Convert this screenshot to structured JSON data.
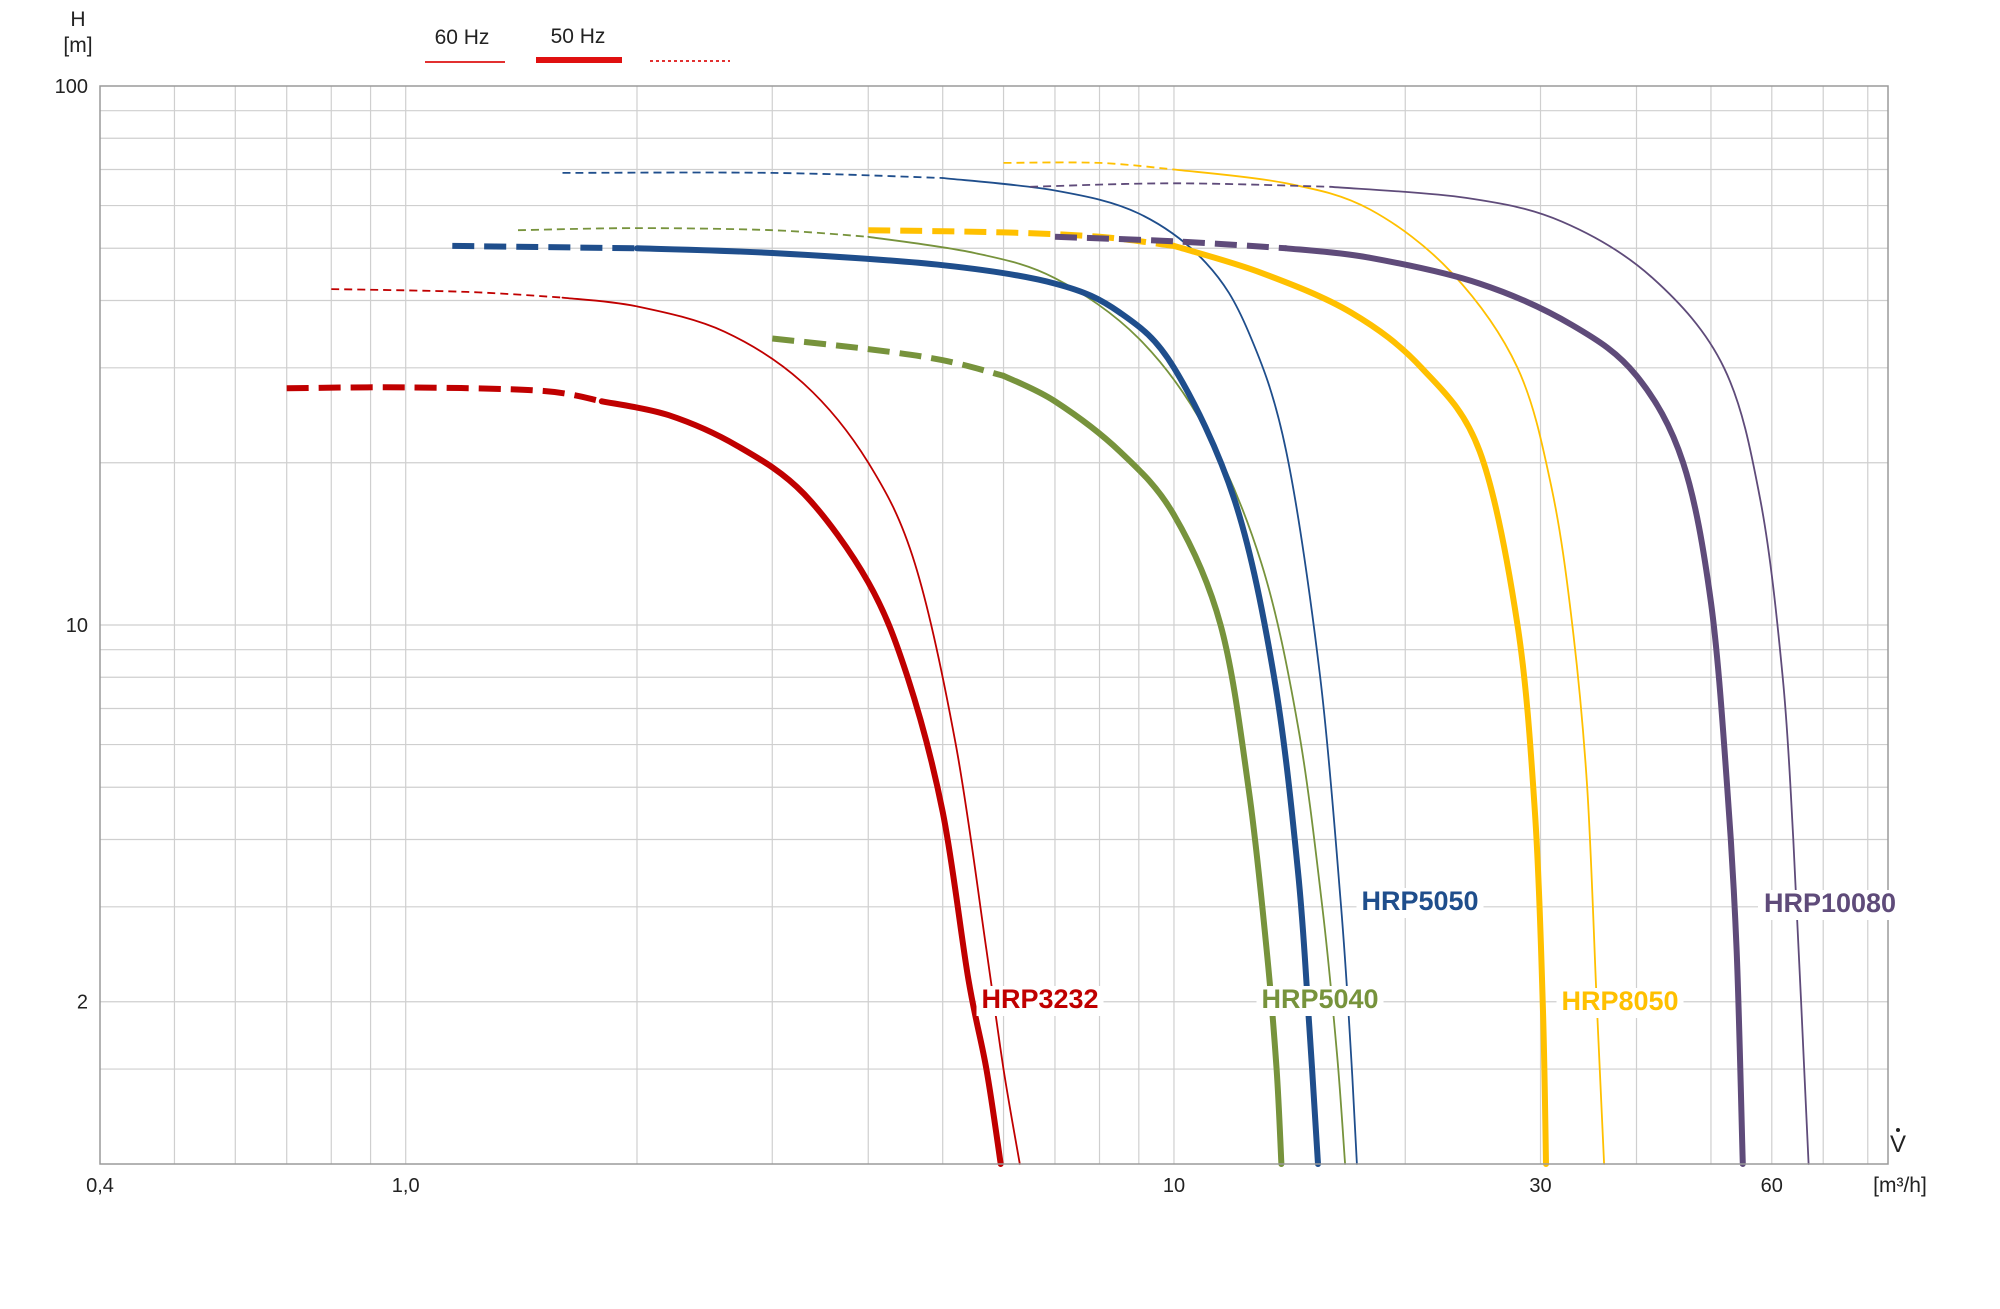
{
  "chart_data": {
    "type": "line",
    "xlabel": "V",
    "xunit": "[m³/h]",
    "ylabel": "H",
    "yunit": "[m]",
    "xscale": "log",
    "yscale": "log",
    "xlim": [
      0.4,
      85
    ],
    "ylim": [
      1,
      100
    ],
    "grid": true,
    "legend_position": "top-left",
    "x_ticks": [
      {
        "value": 0.4,
        "label": "0,4"
      },
      {
        "value": 1.0,
        "label": "1,0"
      },
      {
        "value": 10,
        "label": "10"
      },
      {
        "value": 30,
        "label": "30"
      },
      {
        "value": 60,
        "label": "60"
      }
    ],
    "y_ticks": [
      {
        "value": 100,
        "label": "100"
      },
      {
        "value": 10,
        "label": "10"
      },
      {
        "value": 2,
        "label": "2"
      }
    ],
    "legend": [
      {
        "label": "60 Hz",
        "style": "thin"
      },
      {
        "label": "50 Hz",
        "style": "thick"
      },
      {
        "label": "",
        "style": "dotted"
      }
    ],
    "series": [
      {
        "label": "HRP3232",
        "freq": "50 Hz",
        "color": "#c00000",
        "dash_until_x": 1.8,
        "points": [
          [
            0.7,
            27.5
          ],
          [
            1.0,
            27.6
          ],
          [
            1.5,
            27.2
          ],
          [
            1.8,
            26
          ],
          [
            2.2,
            24.5
          ],
          [
            2.7,
            21.5
          ],
          [
            3.3,
            17.5
          ],
          [
            4.0,
            12
          ],
          [
            4.5,
            8
          ],
          [
            5.0,
            4.5
          ],
          [
            5.4,
            2.2
          ],
          [
            5.7,
            1.5
          ],
          [
            5.95,
            1.0
          ]
        ]
      },
      {
        "label": "HRP3232",
        "freq": "60 Hz",
        "color": "#c00000",
        "dash_until_x": 1.5,
        "points": [
          [
            0.8,
            42
          ],
          [
            1.2,
            41.5
          ],
          [
            1.6,
            40.5
          ],
          [
            2.0,
            39
          ],
          [
            2.6,
            35
          ],
          [
            3.3,
            28
          ],
          [
            4.0,
            20
          ],
          [
            4.6,
            13
          ],
          [
            5.2,
            6
          ],
          [
            5.7,
            2.5
          ],
          [
            6.0,
            1.5
          ],
          [
            6.3,
            1.0
          ]
        ]
      },
      {
        "label": "HRP5040",
        "freq": "50 Hz",
        "color": "#77933c",
        "dash_until_x": 5.5,
        "points": [
          [
            3.0,
            34
          ],
          [
            4.0,
            32.5
          ],
          [
            5.0,
            31
          ],
          [
            6.0,
            29
          ],
          [
            7.0,
            26
          ],
          [
            8.5,
            21
          ],
          [
            10,
            16
          ],
          [
            11.5,
            10
          ],
          [
            12.5,
            5
          ],
          [
            13.2,
            2.5
          ],
          [
            13.6,
            1.5
          ],
          [
            13.8,
            1.0
          ]
        ]
      },
      {
        "label": "HRP5040",
        "freq": "60 Hz",
        "color": "#77933c",
        "dash_until_x": 3.5,
        "points": [
          [
            1.4,
            54
          ],
          [
            2.0,
            54.5
          ],
          [
            3.0,
            54
          ],
          [
            4.0,
            52.5
          ],
          [
            5.5,
            49
          ],
          [
            7.0,
            44
          ],
          [
            9.0,
            34
          ],
          [
            11,
            23
          ],
          [
            13,
            13
          ],
          [
            14.5,
            6.5
          ],
          [
            15.6,
            3.0
          ],
          [
            16.3,
            1.6
          ],
          [
            16.7,
            1.0
          ]
        ]
      },
      {
        "label": "HRP5050",
        "freq": "50 Hz",
        "color": "#1f4e8c",
        "dash_until_x": 2.0,
        "points": [
          [
            1.15,
            50.5
          ],
          [
            2.0,
            50
          ],
          [
            3.0,
            49
          ],
          [
            5.0,
            46.5
          ],
          [
            7.0,
            43
          ],
          [
            8.5,
            38
          ],
          [
            10,
            30
          ],
          [
            12,
            17
          ],
          [
            13.5,
            8
          ],
          [
            14.5,
            3.5
          ],
          [
            15.0,
            1.8
          ],
          [
            15.4,
            1.0
          ]
        ]
      },
      {
        "label": "HRP5050",
        "freq": "60 Hz",
        "color": "#1f4e8c",
        "dash_until_x": 4.5,
        "points": [
          [
            1.6,
            69
          ],
          [
            3.0,
            69
          ],
          [
            5.0,
            67.5
          ],
          [
            7.0,
            64
          ],
          [
            9.0,
            58
          ],
          [
            11,
            47
          ],
          [
            12.5,
            35
          ],
          [
            14,
            21
          ],
          [
            15.5,
            8
          ],
          [
            16.5,
            3.0
          ],
          [
            17.0,
            1.6
          ],
          [
            17.3,
            1.0
          ]
        ]
      },
      {
        "label": "HRP8050",
        "freq": "50 Hz",
        "color": "#ffc000",
        "dash_until_x": 9.5,
        "points": [
          [
            4.0,
            54
          ],
          [
            6.0,
            53.5
          ],
          [
            8.0,
            52.5
          ],
          [
            10,
            50.5
          ],
          [
            13,
            45
          ],
          [
            17,
            38
          ],
          [
            21,
            30
          ],
          [
            25,
            21
          ],
          [
            28,
            10
          ],
          [
            29.5,
            4.5
          ],
          [
            30.2,
            2.0
          ],
          [
            30.5,
            1.0
          ]
        ]
      },
      {
        "label": "HRP8050",
        "freq": "60 Hz",
        "color": "#ffc000",
        "dash_until_x": 10,
        "points": [
          [
            6.0,
            72
          ],
          [
            8.0,
            72
          ],
          [
            10,
            70
          ],
          [
            14,
            66
          ],
          [
            18,
            59
          ],
          [
            23,
            45
          ],
          [
            28,
            30
          ],
          [
            31,
            18
          ],
          [
            33,
            10
          ],
          [
            34.5,
            5
          ],
          [
            35.5,
            2.0
          ],
          [
            36.3,
            1.0
          ]
        ]
      },
      {
        "label": "HRP10080",
        "freq": "50 Hz",
        "color": "#5f4b7a",
        "dash_until_x": 13,
        "points": [
          [
            7.0,
            52.5
          ],
          [
            10,
            51.5
          ],
          [
            14,
            50
          ],
          [
            18,
            48
          ],
          [
            25,
            43
          ],
          [
            33,
            36
          ],
          [
            40,
            29
          ],
          [
            46,
            20
          ],
          [
            50,
            11
          ],
          [
            52.5,
            5
          ],
          [
            54,
            2.5
          ],
          [
            55,
            1.0
          ]
        ]
      },
      {
        "label": "HRP10080",
        "freq": "60 Hz",
        "color": "#5f4b7a",
        "dash_until_x": 15,
        "points": [
          [
            6.5,
            65
          ],
          [
            10,
            66
          ],
          [
            16,
            65
          ],
          [
            24,
            62
          ],
          [
            32,
            56
          ],
          [
            42,
            44
          ],
          [
            52,
            30
          ],
          [
            58,
            17
          ],
          [
            62,
            8
          ],
          [
            64,
            4
          ],
          [
            65.5,
            2.0
          ],
          [
            67,
            1.0
          ]
        ]
      }
    ],
    "annotations": [
      {
        "text": "HRP3232",
        "color": "#c00000"
      },
      {
        "text": "HRP5040",
        "color": "#77933c"
      },
      {
        "text": "HRP5050",
        "color": "#1f4e8c"
      },
      {
        "text": "HRP8050",
        "color": "#ffc000"
      },
      {
        "text": "HRP10080",
        "color": "#5f4b7a"
      }
    ]
  }
}
